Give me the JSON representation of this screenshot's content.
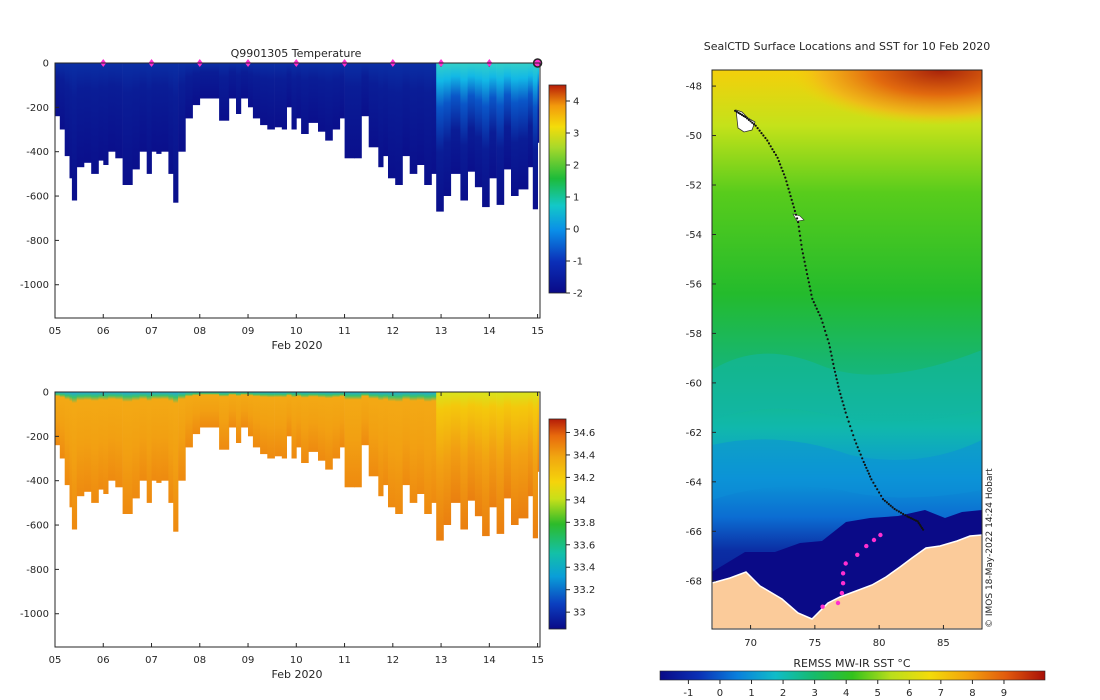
{
  "chart_data": [
    {
      "type": "heatmap",
      "variable": "temperature",
      "title": "Q9901305  Temperature",
      "xlabel": "Feb 2020",
      "xticks": [
        "05",
        "06",
        "07",
        "08",
        "09",
        "10",
        "11",
        "12",
        "13",
        "14",
        "15"
      ],
      "xlim": [
        5,
        15.05
      ],
      "yticks": [
        0,
        -200,
        -400,
        -600,
        -800,
        -1000
      ],
      "ylim": [
        -1150,
        0
      ],
      "colorbar": {
        "ticks": [
          4,
          3,
          2,
          1,
          0,
          -1,
          -2
        ],
        "range": [
          -2,
          4.5
        ]
      },
      "profile_depths_m": [
        [
          5.0,
          240
        ],
        [
          5.1,
          300
        ],
        [
          5.2,
          420
        ],
        [
          5.3,
          520
        ],
        [
          5.35,
          620
        ],
        [
          5.45,
          470
        ],
        [
          5.6,
          450
        ],
        [
          5.75,
          500
        ],
        [
          5.9,
          440
        ],
        [
          6.0,
          460
        ],
        [
          6.1,
          400
        ],
        [
          6.25,
          430
        ],
        [
          6.4,
          550
        ],
        [
          6.6,
          480
        ],
        [
          6.75,
          400
        ],
        [
          6.9,
          500
        ],
        [
          7.0,
          400
        ],
        [
          7.1,
          410
        ],
        [
          7.2,
          400
        ],
        [
          7.35,
          500
        ],
        [
          7.45,
          630
        ],
        [
          7.55,
          400
        ],
        [
          7.7,
          250
        ],
        [
          7.85,
          190
        ],
        [
          8.0,
          160
        ],
        [
          8.2,
          160
        ],
        [
          8.4,
          260
        ],
        [
          8.6,
          160
        ],
        [
          8.75,
          230
        ],
        [
          8.85,
          160
        ],
        [
          9.0,
          200
        ],
        [
          9.1,
          250
        ],
        [
          9.25,
          280
        ],
        [
          9.4,
          300
        ],
        [
          9.55,
          290
        ],
        [
          9.7,
          300
        ],
        [
          9.8,
          200
        ],
        [
          9.9,
          300
        ],
        [
          10.0,
          250
        ],
        [
          10.1,
          320
        ],
        [
          10.25,
          270
        ],
        [
          10.45,
          310
        ],
        [
          10.6,
          350
        ],
        [
          10.75,
          300
        ],
        [
          10.9,
          250
        ],
        [
          11.0,
          430
        ],
        [
          11.2,
          430
        ],
        [
          11.35,
          240
        ],
        [
          11.5,
          380
        ],
        [
          11.7,
          470
        ],
        [
          11.8,
          420
        ],
        [
          11.9,
          520
        ],
        [
          12.05,
          550
        ],
        [
          12.2,
          420
        ],
        [
          12.35,
          500
        ],
        [
          12.5,
          460
        ],
        [
          12.65,
          550
        ],
        [
          12.8,
          500
        ],
        [
          12.9,
          670
        ],
        [
          13.05,
          600
        ],
        [
          13.2,
          500
        ],
        [
          13.4,
          620
        ],
        [
          13.55,
          490
        ],
        [
          13.7,
          560
        ],
        [
          13.85,
          650
        ],
        [
          14.0,
          520
        ],
        [
          14.15,
          640
        ],
        [
          14.3,
          480
        ],
        [
          14.45,
          600
        ],
        [
          14.6,
          570
        ],
        [
          14.8,
          470
        ],
        [
          14.9,
          660
        ],
        [
          15.0,
          360
        ]
      ],
      "surface_markers_day": [
        6,
        7,
        8,
        9,
        10,
        11,
        12,
        13,
        14,
        15
      ]
    },
    {
      "type": "heatmap",
      "variable": "salinity",
      "title": "",
      "xlabel": "Feb 2020",
      "xticks": [
        "05",
        "06",
        "07",
        "08",
        "09",
        "10",
        "11",
        "12",
        "13",
        "14",
        "15"
      ],
      "xlim": [
        5,
        15.05
      ],
      "yticks": [
        0,
        -200,
        -400,
        -600,
        -800,
        -1000
      ],
      "ylim": [
        -1150,
        0
      ],
      "colorbar": {
        "ticks": [
          "34.6",
          "34.4",
          "34.2",
          "34",
          "33.8",
          "33.6",
          "33.4",
          "33.2",
          "33"
        ],
        "range": [
          32.85,
          34.72
        ]
      }
    },
    {
      "type": "heatmap",
      "variable": "sea surface temperature map",
      "title": "SealCTD Surface Locations and SST for 10 Feb 2020",
      "colorbar_label": "REMSS MW-IR SST °C",
      "colorbar_ticks": [
        "-1",
        "0",
        "1",
        "2",
        "3",
        "4",
        "5",
        "6",
        "7",
        "8",
        "9"
      ],
      "colorbar_range": [
        -1.9,
        10.3
      ],
      "xticks": [
        "70",
        "75",
        "80",
        "85"
      ],
      "xlim": [
        67,
        88
      ],
      "yticks": [
        "-48",
        "-50",
        "-52",
        "-54",
        "-56",
        "-58",
        "-60",
        "-62",
        "-64",
        "-66",
        "-68"
      ],
      "ylim": [
        -69.95,
        -47.35
      ],
      "track": [
        [
          68.8,
          -49.0
        ],
        [
          69.6,
          -49.25
        ],
        [
          70.4,
          -49.6
        ],
        [
          71.3,
          -50.2
        ],
        [
          72.1,
          -50.9
        ],
        [
          72.7,
          -51.7
        ],
        [
          73.2,
          -52.6
        ],
        [
          73.7,
          -53.5
        ],
        [
          74.0,
          -54.6
        ],
        [
          74.4,
          -55.6
        ],
        [
          74.8,
          -56.6
        ],
        [
          75.5,
          -57.4
        ],
        [
          76.1,
          -58.4
        ],
        [
          76.5,
          -59.4
        ],
        [
          76.9,
          -60.3
        ],
        [
          77.4,
          -61.2
        ],
        [
          78.1,
          -62.3
        ],
        [
          78.8,
          -63.2
        ],
        [
          79.4,
          -63.9
        ],
        [
          80.3,
          -64.7
        ],
        [
          81.2,
          -65.1
        ],
        [
          82.2,
          -65.4
        ],
        [
          83.0,
          -65.6
        ],
        [
          83.5,
          -66.0
        ]
      ],
      "surface_points": [
        [
          75.6,
          -69.05
        ],
        [
          76.8,
          -68.9
        ],
        [
          77.1,
          -68.5
        ],
        [
          77.2,
          -68.1
        ],
        [
          77.2,
          -67.7
        ],
        [
          77.4,
          -67.3
        ],
        [
          78.3,
          -66.95
        ],
        [
          79.0,
          -66.6
        ],
        [
          79.6,
          -66.35
        ],
        [
          80.1,
          -66.15
        ]
      ],
      "credit": "© IMOS 18-May-2022 14:24 Hobart"
    }
  ]
}
